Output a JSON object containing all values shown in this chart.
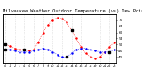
{
  "title": "Milwaukee Weather Outdoor Temperature (vs) Dew Point (Last 24 Hours)",
  "temp_color": "#ff0000",
  "dew_color": "#0000ff",
  "marker_color": "#000000",
  "background_color": "#ffffff",
  "grid_color": "#bbbbbb",
  "temp_values": [
    50,
    49,
    47,
    46,
    46,
    45,
    46,
    52,
    60,
    66,
    70,
    72,
    71,
    68,
    62,
    55,
    48,
    43,
    40,
    39,
    40,
    44,
    48,
    52
  ],
  "dew_values": [
    46,
    46,
    45,
    44,
    44,
    44,
    45,
    46,
    47,
    46,
    44,
    42,
    40,
    40,
    43,
    46,
    47,
    47,
    46,
    45,
    44,
    44,
    44,
    46
  ],
  "black_sq_temp": [
    0,
    4,
    14
  ],
  "black_sq_dew": [
    0,
    13,
    22
  ],
  "ylim": [
    35,
    75
  ],
  "ytick_vals": [
    40,
    45,
    50,
    55,
    60,
    65,
    70
  ],
  "ytick_labels": [
    "40",
    "45",
    "50",
    "55",
    "60",
    "65",
    "70"
  ],
  "num_points": 24,
  "title_fontsize": 3.8,
  "tick_fontsize": 3.0,
  "linewidth": 0.5,
  "markersize": 1.5
}
